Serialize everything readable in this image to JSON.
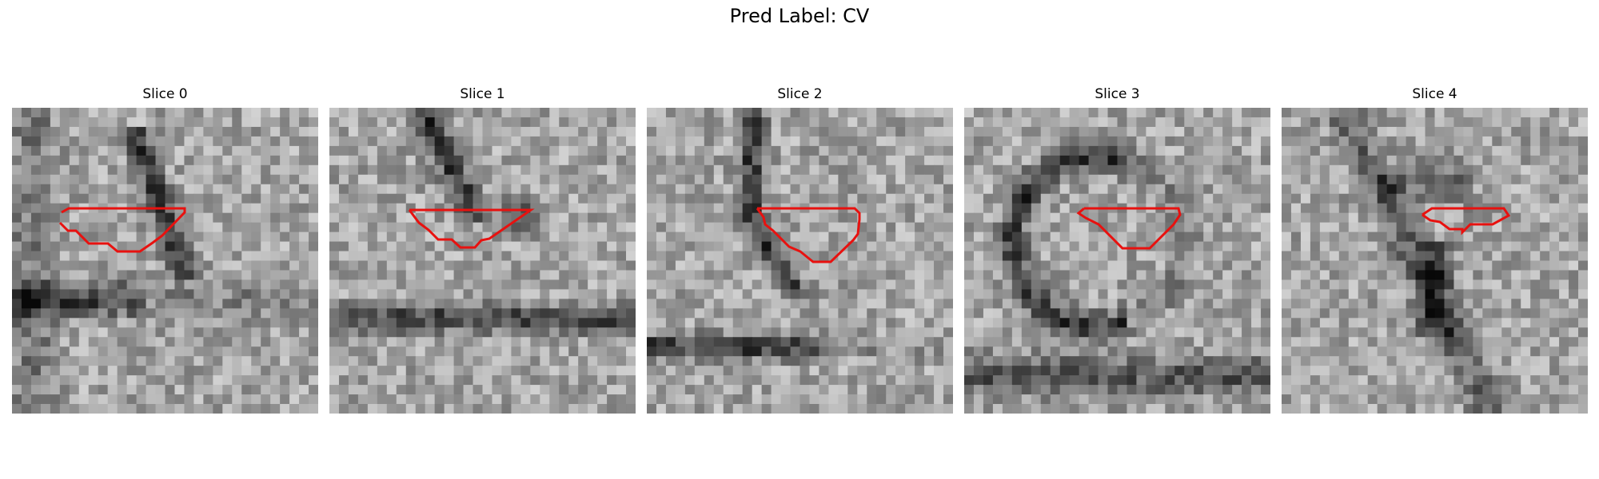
{
  "figure": {
    "title": "Pred Label: CV"
  },
  "panels": [
    {
      "title": "Slice 0"
    },
    {
      "title": "Slice 1"
    },
    {
      "title": "Slice 2"
    },
    {
      "title": "Slice 3"
    },
    {
      "title": "Slice 4"
    }
  ],
  "colors": {
    "contour": "#e8110f",
    "background": "#ffffff"
  }
}
